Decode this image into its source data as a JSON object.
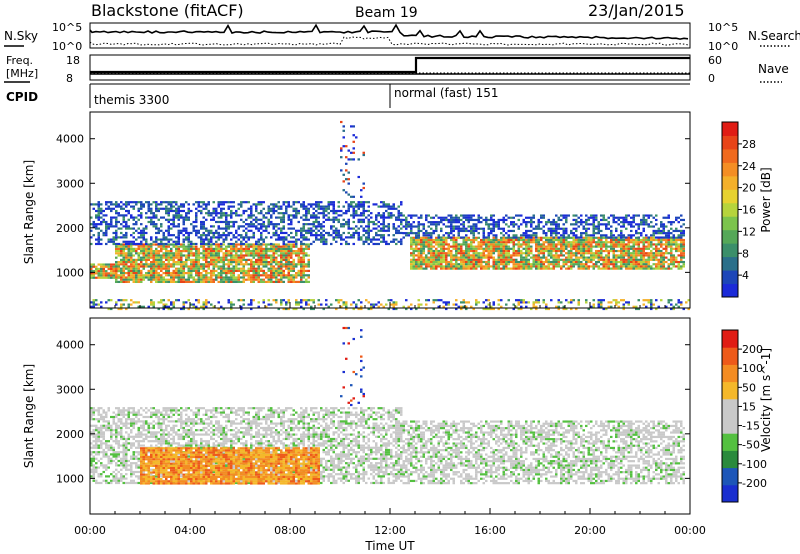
{
  "header": {
    "radar": "Blackstone (fitACF)",
    "beam": "Beam 19",
    "date": "23/Jan/2015"
  },
  "top_panels": {
    "nsky_label": "N.Sky",
    "nsearch_label": "N.Search",
    "nsky_ticks": [
      "10^5",
      "10^0"
    ],
    "nsearch_ticks": [
      "10^5",
      "10^0"
    ],
    "freq_label_line1": "Freq.",
    "freq_label_line2": "[MHz]",
    "freq_ticks": [
      "18",
      "8"
    ],
    "nave_label": "Nave",
    "nave_ticks": [
      "60",
      "0"
    ],
    "cpid_label": "CPID",
    "cpid_segments": [
      {
        "name": "themis 3300",
        "start_hour": 0.0
      },
      {
        "name": "normal (fast) 151",
        "start_hour": 12.0
      }
    ]
  },
  "chart_data": [
    {
      "type": "heatmap",
      "title": "",
      "xlabel": "",
      "ylabel": "Slant Range [km]",
      "xlim": [
        0,
        24
      ],
      "ylim": [
        200,
        4600
      ],
      "yticks": [
        1000,
        2000,
        3000,
        4000
      ],
      "color_label": "Power [dB]",
      "colorbar_ticks": [
        "4",
        "8",
        "12",
        "16",
        "20",
        "24",
        "28"
      ],
      "colorbar_colors": [
        "#1b2bd8",
        "#1c46b8",
        "#2a6f8a",
        "#3b8f6a",
        "#55a858",
        "#7cc44c",
        "#b6d43c",
        "#e6d230",
        "#f4b02a",
        "#f48e24",
        "#f06a1e",
        "#e84418",
        "#e01c14"
      ],
      "bands": [
        {
          "hours": [
            0.0,
            1.2
          ],
          "range_km": [
            880,
            1200
          ],
          "level": "high"
        },
        {
          "hours": [
            1.0,
            8.8
          ],
          "range_km": [
            800,
            1650
          ],
          "level": "high"
        },
        {
          "hours": [
            0.0,
            12.5
          ],
          "range_km": [
            1650,
            2600
          ],
          "level": "low"
        },
        {
          "hours": [
            12.8,
            23.8
          ],
          "range_km": [
            1100,
            1800
          ],
          "level": "high"
        },
        {
          "hours": [
            12.5,
            23.8
          ],
          "range_km": [
            1800,
            2300
          ],
          "level": "low"
        },
        {
          "hours": [
            10.0,
            11.0
          ],
          "range_km": [
            2600,
            4400
          ],
          "level": "sparse"
        },
        {
          "hours": [
            0.0,
            24.0
          ],
          "range_km": [
            200,
            400
          ],
          "level": "ground"
        }
      ]
    },
    {
      "type": "heatmap",
      "title": "",
      "xlabel": "Time UT",
      "ylabel": "Slant Range [km]",
      "xlim": [
        0,
        24
      ],
      "ylim": [
        200,
        4600
      ],
      "yticks": [
        1000,
        2000,
        3000,
        4000
      ],
      "xticks": [
        "00:00",
        "04:00",
        "08:00",
        "12:00",
        "16:00",
        "20:00",
        "00:00"
      ],
      "color_label": "Velocity [m s^-1]",
      "colorbar_ticks": [
        "200",
        "100",
        "50",
        "15",
        "-15",
        "-50",
        "-100",
        "-200"
      ],
      "colorbar_colors": [
        "#1a2fd0",
        "#1d56b8",
        "#2a8a3c",
        "#54c040",
        "#c9c9c9",
        "#c9c9c9",
        "#f5b82a",
        "#f48c22",
        "#ee5a1a",
        "#e01c14"
      ],
      "bands": [
        {
          "hours": [
            2.0,
            9.2
          ],
          "range_km": [
            900,
            1700
          ],
          "level": "negative"
        },
        {
          "hours": [
            0.0,
            12.5
          ],
          "range_km": [
            900,
            2600
          ],
          "level": "near-zero"
        },
        {
          "hours": [
            12.5,
            23.8
          ],
          "range_km": [
            900,
            2300
          ],
          "level": "near-zero"
        },
        {
          "hours": [
            10.0,
            11.0
          ],
          "range_km": [
            2600,
            4400
          ],
          "level": "sparse"
        }
      ]
    }
  ]
}
